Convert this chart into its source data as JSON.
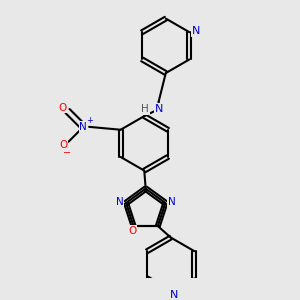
{
  "background_color": "#e8e8e8",
  "bond_color": "#000000",
  "N_color": "#0000cd",
  "O_color": "#ff0000",
  "line_width": 1.5,
  "fig_size": [
    3.0,
    3.0
  ],
  "dpi": 100,
  "xlim": [
    0.05,
    0.95
  ],
  "ylim": [
    0.02,
    0.98
  ]
}
